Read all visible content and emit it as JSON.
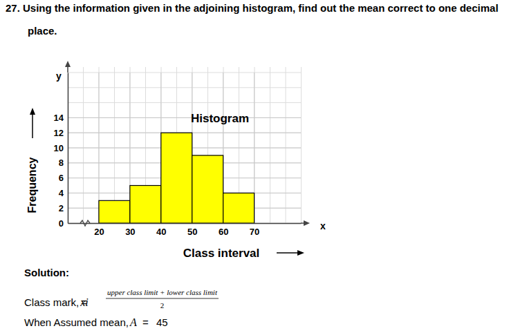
{
  "question": {
    "lines": [
      "27. Using the information given in the adjoining histogram, find out the mean correct to one decimal",
      "place."
    ]
  },
  "solution": {
    "heading": "Solution:",
    "class_mark_label": "Class mark, ",
    "class_mark_symbol": "xi",
    "equals": "=",
    "numerator": "upper class limit + lower class limit",
    "denominator": 2,
    "assumed_mean_label": "When Assumed mean, ",
    "assumed_mean_symbol": "A",
    "assumed_mean_equals": "=",
    "assumed_mean_value": 45
  },
  "chart_data": {
    "type": "histogram",
    "title": "Histogram",
    "x_label": "Class interval",
    "y_label": "Frequency",
    "x_axis_symbol": "x",
    "y_axis_symbol": "y",
    "bins": [
      20,
      30,
      40,
      50,
      60,
      70
    ],
    "values": [
      3,
      5,
      12,
      9,
      4
    ],
    "color": "#ffff00",
    "xlim": [
      10,
      85
    ],
    "xticks": [
      20,
      30,
      40,
      50,
      60,
      70
    ],
    "ylim": [
      0,
      20
    ],
    "yticks": [
      0,
      2,
      4,
      6,
      8,
      10,
      12,
      14
    ],
    "grid": true
  }
}
